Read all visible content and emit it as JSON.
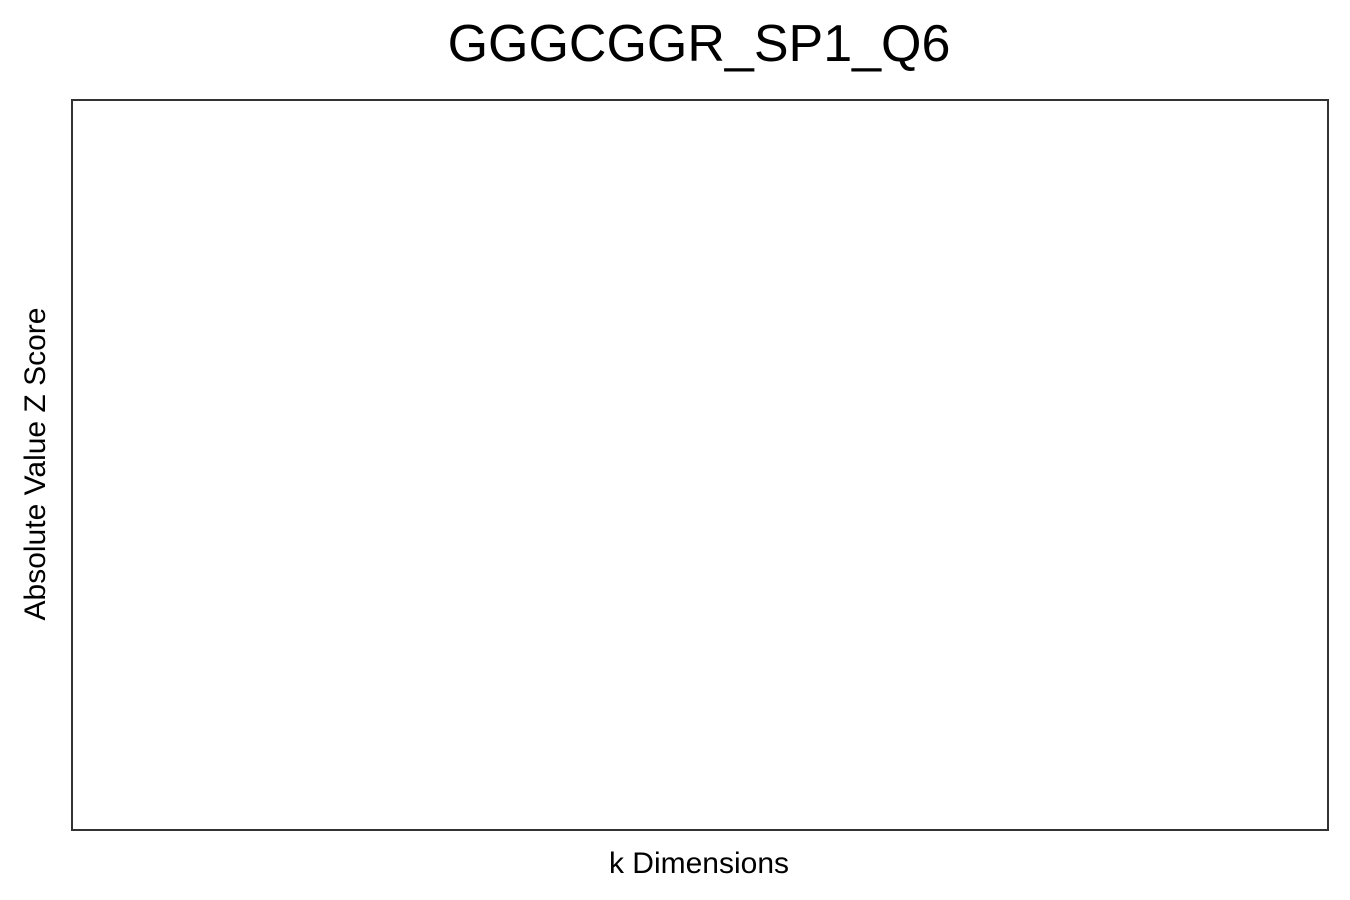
{
  "chart_data": {
    "type": "line",
    "title": "GGGCGGR_SP1_Q6",
    "xlabel": "k Dimensions",
    "ylabel": "Absolute Value Z Score",
    "series": [],
    "grid": false,
    "legend": "none",
    "frame_color": "#333333",
    "background": "#ffffff"
  }
}
